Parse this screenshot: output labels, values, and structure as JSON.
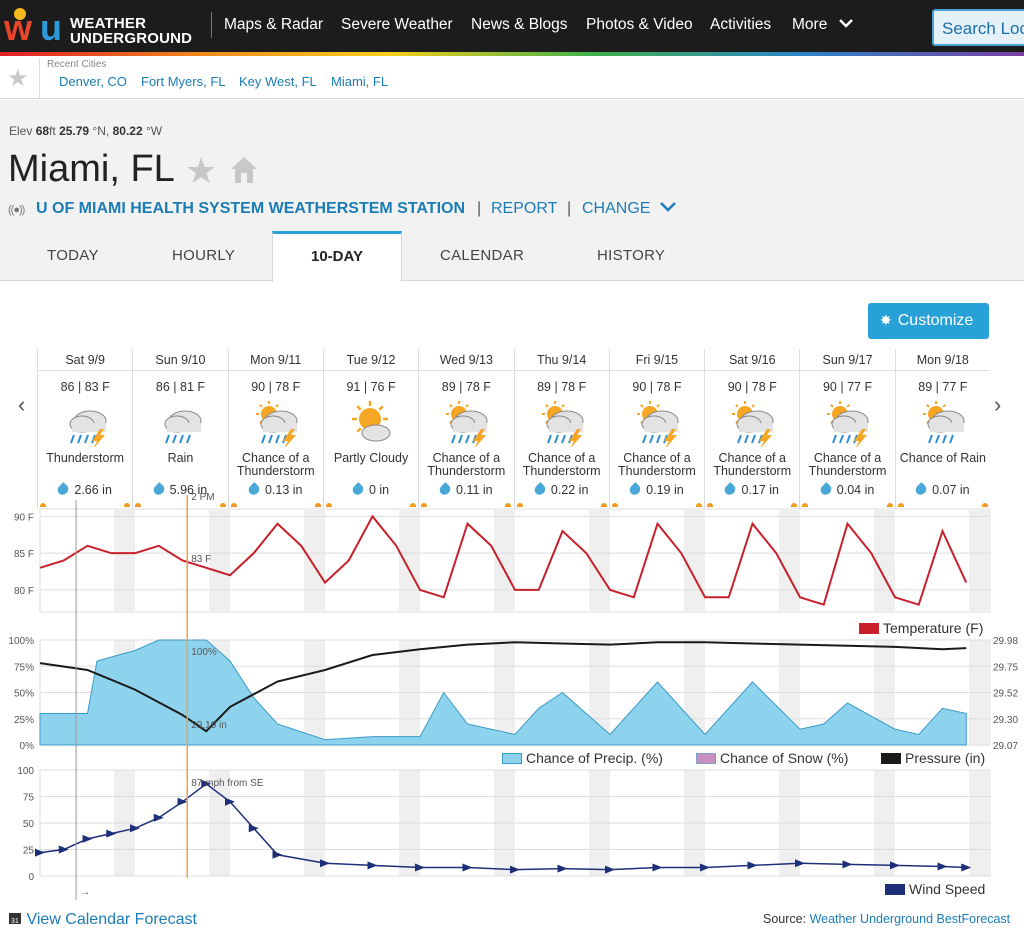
{
  "header": {
    "logo_line1": "WEATHER",
    "logo_line2": "UNDERGROUND",
    "nav": [
      "Maps & Radar",
      "Severe Weather",
      "News & Blogs",
      "Photos & Video",
      "Activities",
      "More"
    ],
    "search_placeholder": "Search Locations"
  },
  "recent": {
    "label": "Recent Cities",
    "cities": [
      "Denver, CO",
      "Fort Myers, FL",
      "Key West, FL",
      "Miami, FL"
    ]
  },
  "location": {
    "elev_label": "Elev",
    "elev_value": "68",
    "elev_unit": "ft",
    "lat": "25.79",
    "lat_unit": "°N,",
    "lon": "80.22",
    "lon_unit": "°W",
    "city": "Miami, FL",
    "station": "U OF MIAMI HEALTH SYSTEM WEATHERSTEM STATION",
    "report": "REPORT",
    "change": "CHANGE",
    "pipe": "|"
  },
  "tabs": [
    "TODAY",
    "HOURLY",
    "10-DAY",
    "CALENDAR",
    "HISTORY"
  ],
  "customize_label": "Customize",
  "forecast": [
    {
      "day": "Sat 9/9",
      "temp": "86 | 83 F",
      "cond": [
        "Thunderstorm"
      ],
      "icon": "thunderstorm",
      "precip": "2.66 in"
    },
    {
      "day": "Sun 9/10",
      "temp": "86 | 81 F",
      "cond": [
        "Rain"
      ],
      "icon": "rain",
      "precip": "5.96 in"
    },
    {
      "day": "Mon 9/11",
      "temp": "90 | 78 F",
      "cond": [
        "Chance of a",
        "Thunderstorm"
      ],
      "icon": "chance-tstorm",
      "precip": "0.13 in"
    },
    {
      "day": "Tue 9/12",
      "temp": "91 | 76 F",
      "cond": [
        "Partly Cloudy"
      ],
      "icon": "partly-cloudy",
      "precip": "0 in"
    },
    {
      "day": "Wed 9/13",
      "temp": "89 | 78 F",
      "cond": [
        "Chance of a",
        "Thunderstorm"
      ],
      "icon": "chance-tstorm",
      "precip": "0.11 in"
    },
    {
      "day": "Thu 9/14",
      "temp": "89 | 78 F",
      "cond": [
        "Chance of a",
        "Thunderstorm"
      ],
      "icon": "chance-tstorm",
      "precip": "0.22 in"
    },
    {
      "day": "Fri 9/15",
      "temp": "90 | 78 F",
      "cond": [
        "Chance of a",
        "Thunderstorm"
      ],
      "icon": "chance-tstorm",
      "precip": "0.19 in"
    },
    {
      "day": "Sat 9/16",
      "temp": "90 | 78 F",
      "cond": [
        "Chance of a",
        "Thunderstorm"
      ],
      "icon": "chance-tstorm",
      "precip": "0.17 in"
    },
    {
      "day": "Sun 9/17",
      "temp": "90 | 77 F",
      "cond": [
        "Chance of a",
        "Thunderstorm"
      ],
      "icon": "chance-tstorm",
      "precip": "0.04 in"
    },
    {
      "day": "Mon 9/18",
      "temp": "89 | 77 F",
      "cond": [
        "Chance of Rain"
      ],
      "icon": "chance-rain",
      "precip": "0.07 in"
    }
  ],
  "charts": {
    "cursor_label": "2 PM",
    "temp_cursor_label": "83 F",
    "precip_cursor_label": "100%",
    "pressure_cursor_label": "29.19 in",
    "wind_cursor_label": "87 mph from SE",
    "temp_axis": [
      "90 F",
      "85 F",
      "80 F"
    ],
    "precip_axis": [
      "100%",
      "75%",
      "50%",
      "25%",
      "0%"
    ],
    "pressure_axis": [
      "29.98",
      "29.75",
      "29.52",
      "29.30",
      "29.07"
    ],
    "wind_axis": [
      "100",
      "75",
      "50",
      "25",
      "0"
    ],
    "legend_temp": "Temperature (F)",
    "legend_precip": "Chance of Precip. (%)",
    "legend_snow": "Chance of Snow (%)",
    "legend_pressure": "Pressure (in)",
    "legend_wind": "Wind Speed",
    "now_arrow": "→"
  },
  "colors": {
    "temperature": "#c8202a",
    "precip": "#8ed3ee",
    "snow": "#c98fbf",
    "pressure": "#1a1a1a",
    "wind": "#1e2f7a",
    "accent": "#27a1d8"
  },
  "chart_data": [
    {
      "type": "line",
      "ylabel": "",
      "ylim": [
        77,
        91
      ],
      "series": [
        {
          "name": "Temperature (F)",
          "x_days": [
            0.0,
            0.25,
            0.5,
            0.75,
            1.0,
            1.25,
            1.5,
            1.75,
            2.0,
            2.25,
            2.5,
            2.75,
            3.0,
            3.25,
            3.5,
            3.75,
            4.0,
            4.25,
            4.5,
            4.75,
            5.0,
            5.25,
            5.5,
            5.75,
            6.0,
            6.25,
            6.5,
            6.75,
            7.0,
            7.25,
            7.5,
            7.75,
            8.0,
            8.25,
            8.5,
            8.75,
            9.0,
            9.25,
            9.5,
            9.75
          ],
          "values": [
            83,
            84,
            86,
            85,
            85,
            86,
            84,
            83,
            82,
            85,
            89,
            86,
            81,
            84,
            90,
            86,
            80,
            79,
            89,
            86,
            80,
            80,
            88,
            85,
            80,
            79,
            89,
            85,
            79,
            79,
            89,
            85,
            79,
            78,
            89,
            85,
            79,
            78,
            88,
            81
          ]
        }
      ]
    },
    {
      "type": "area",
      "ylim": [
        0,
        100
      ],
      "series": [
        {
          "name": "Chance of Precip. (%)",
          "x_days": [
            0,
            0.5,
            0.6,
            1.0,
            1.25,
            1.5,
            1.75,
            2.0,
            2.25,
            2.5,
            3.0,
            3.5,
            4.0,
            4.25,
            4.5,
            5.0,
            5.25,
            5.5,
            6.0,
            6.25,
            6.5,
            7.0,
            7.25,
            7.5,
            8.0,
            8.25,
            8.5,
            9.0,
            9.25,
            9.5,
            9.75
          ],
          "values": [
            30,
            30,
            80,
            90,
            100,
            100,
            100,
            80,
            45,
            20,
            5,
            8,
            8,
            50,
            20,
            10,
            35,
            50,
            10,
            35,
            60,
            10,
            35,
            60,
            15,
            20,
            40,
            15,
            10,
            35,
            30
          ]
        },
        {
          "name": "Pressure (in)",
          "x_days": [
            0,
            0.5,
            1.0,
            1.5,
            1.75,
            2.0,
            2.5,
            3.0,
            3.5,
            4.0,
            4.5,
            5.0,
            5.5,
            6.0,
            6.5,
            7.0,
            7.5,
            8.0,
            8.5,
            9.0,
            9.5,
            9.75
          ],
          "values": [
            29.78,
            29.72,
            29.55,
            29.33,
            29.19,
            29.4,
            29.62,
            29.72,
            29.85,
            29.9,
            29.94,
            29.96,
            29.95,
            29.94,
            29.96,
            29.96,
            29.95,
            29.94,
            29.93,
            29.92,
            29.9,
            29.91
          ]
        }
      ]
    },
    {
      "type": "line",
      "ylim": [
        0,
        100
      ],
      "series": [
        {
          "name": "Wind Speed",
          "x_days": [
            0,
            0.25,
            0.5,
            0.75,
            1.0,
            1.25,
            1.5,
            1.75,
            2.0,
            2.25,
            2.5,
            3.0,
            3.5,
            4.0,
            4.5,
            5.0,
            5.5,
            6.0,
            6.5,
            7.0,
            7.5,
            8.0,
            8.5,
            9.0,
            9.5,
            9.75
          ],
          "values": [
            22,
            25,
            35,
            40,
            45,
            55,
            70,
            87,
            70,
            45,
            20,
            12,
            10,
            8,
            8,
            6,
            7,
            6,
            8,
            8,
            10,
            12,
            11,
            10,
            9,
            8
          ]
        }
      ]
    }
  ]
}
